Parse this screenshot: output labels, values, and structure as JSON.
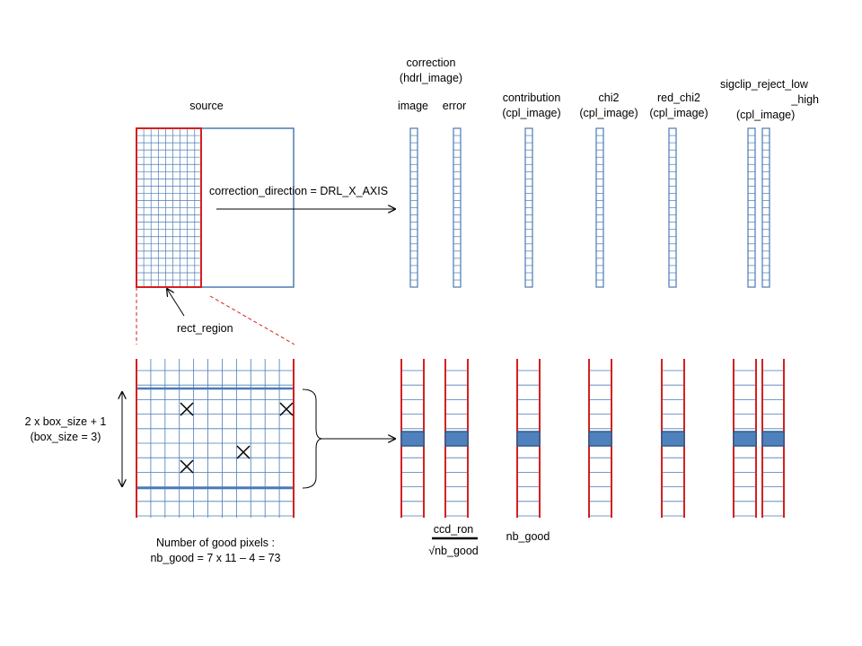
{
  "colors": {
    "blue": "#4a7ab5",
    "red": "#d42020",
    "fill": "#4f81bd",
    "text": "#000000"
  },
  "labels": {
    "source": "source",
    "correction_1": "correction",
    "correction_2": "(hdrl_image)",
    "image": "image",
    "error": "error",
    "contribution_1": "contribution",
    "contribution_2": "(cpl_image)",
    "chi2_1": "chi2",
    "chi2_2": "(cpl_image)",
    "red_chi2_1": "red_chi2",
    "red_chi2_2": "(cpl_image)",
    "sigclip_1": "sigclip_reject_low",
    "sigclip_2": "_high",
    "sigclip_3": "(cpl_image)",
    "direction": "correction_direction = DRL_X_AXIS",
    "rect_region": "rect_region",
    "box_1": "2 x box_size + 1",
    "box_2": "(box_size = 3)",
    "good_1": "Number of good pixels :",
    "good_2": "nb_good = 7 x 11 – 4 = 73",
    "ccd_ron": "ccd_ron",
    "sqrt_nb_good": "√nb_good",
    "nb_good": "nb_good"
  }
}
